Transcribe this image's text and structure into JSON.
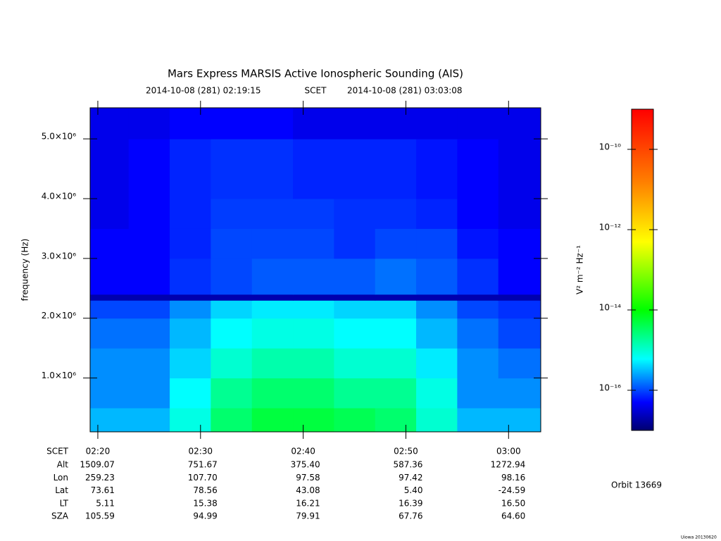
{
  "chart_data": {
    "type": "spectrogram",
    "title": "Mars Express MARSIS Active Ionospheric Sounding (AIS)",
    "subtitle_start": "2014-10-08 (281) 02:19:15",
    "subtitle_label": "SCET",
    "subtitle_end": "2014-10-08 (281) 03:03:08",
    "ylabel": "frequency (Hz)",
    "xlim": [
      "02:19:15",
      "03:03:08"
    ],
    "xticks": [
      "02:20",
      "02:30",
      "02:40",
      "02:50",
      "03:00"
    ],
    "ylim": [
      100000,
      5520000
    ],
    "yticks": [
      {
        "value": 1000000,
        "label": "1.0×10⁶"
      },
      {
        "value": 2000000,
        "label": "2.0×10⁶"
      },
      {
        "value": 3000000,
        "label": "3.0×10⁶"
      },
      {
        "value": 4000000,
        "label": "4.0×10⁶"
      },
      {
        "value": 5000000,
        "label": "5.0×10⁶"
      }
    ],
    "time_bins": [
      "02:19:15",
      "02:23",
      "02:27",
      "02:31",
      "02:35",
      "02:39",
      "02:43",
      "02:47",
      "02:51",
      "02:55",
      "02:59",
      "03:03:08"
    ],
    "freq_bins": [
      100000,
      500000,
      1000000,
      1500000,
      2000000,
      2300000,
      2400000,
      3000000,
      3500000,
      4000000,
      5000000,
      5520000
    ],
    "z": [
      [
        3e-16,
        3e-16,
        8e-16,
        3e-15,
        5e-15,
        5e-15,
        4e-15,
        3e-15,
        1e-15,
        3e-16,
        3e-16
      ],
      [
        2e-16,
        2e-16,
        6e-16,
        2e-15,
        3e-15,
        3e-15,
        2e-15,
        2e-15,
        8e-16,
        2e-16,
        2e-16
      ],
      [
        2e-16,
        2e-16,
        4e-16,
        1e-15,
        1.5e-15,
        1.5e-15,
        1e-15,
        1e-15,
        5e-16,
        2e-16,
        1.5e-16
      ],
      [
        1.5e-16,
        1.5e-16,
        3e-16,
        6e-16,
        8e-16,
        8e-16,
        6e-16,
        6e-16,
        3e-16,
        1.5e-16,
        1e-16
      ],
      [
        1e-16,
        1e-16,
        2e-16,
        4e-16,
        5e-16,
        5e-16,
        4e-16,
        4e-16,
        2e-16,
        1e-16,
        8e-17
      ],
      [
        2e-17,
        2e-17,
        2e-17,
        2e-17,
        2e-17,
        2e-17,
        2e-17,
        2e-17,
        2e-17,
        2e-17,
        2e-17
      ],
      [
        5e-17,
        5e-17,
        8e-17,
        1e-16,
        1.2e-16,
        1.2e-16,
        1.2e-16,
        1.5e-16,
        1.2e-16,
        8e-17,
        5e-17
      ],
      [
        5e-17,
        5e-17,
        7e-17,
        1e-16,
        1e-16,
        1e-16,
        8e-17,
        1e-16,
        1e-16,
        6e-17,
        5e-17
      ],
      [
        4e-17,
        5e-17,
        7e-17,
        9e-17,
        9e-17,
        9e-17,
        8e-17,
        8e-17,
        7e-17,
        5e-17,
        4e-17
      ],
      [
        4e-17,
        5e-17,
        7e-17,
        8e-17,
        8e-17,
        7e-17,
        7e-17,
        7e-17,
        6e-17,
        5e-17,
        4e-17
      ],
      [
        4e-17,
        4e-17,
        5e-17,
        5e-17,
        5e-17,
        4e-17,
        4e-17,
        4e-17,
        4e-17,
        4e-17,
        4e-17
      ]
    ],
    "colorbar": {
      "label": "V² m⁻² Hz⁻¹",
      "scale": "log",
      "lim": [
        1e-17,
        1e-09
      ],
      "ticks": [
        {
          "value": 1e-16,
          "label": "10⁻¹⁶"
        },
        {
          "value": 1e-14,
          "label": "10⁻¹⁴"
        },
        {
          "value": 1e-12,
          "label": "10⁻¹²"
        },
        {
          "value": 1e-10,
          "label": "10⁻¹⁰"
        }
      ],
      "colormap": [
        {
          "value": 1e-17,
          "color": "#000070"
        },
        {
          "value": 5e-17,
          "color": "#0000ff"
        },
        {
          "value": 6e-16,
          "color": "#00ffff"
        },
        {
          "value": 1e-14,
          "color": "#00ff00"
        },
        {
          "value": 5e-13,
          "color": "#ffff00"
        },
        {
          "value": 1.5e-11,
          "color": "#ff8000"
        },
        {
          "value": 1e-09,
          "color": "#ff0000"
        }
      ]
    }
  },
  "ephemeris": {
    "time_label": "SCET",
    "labels": [
      "Alt",
      "Lon",
      "Lat",
      "LT",
      "SZA"
    ],
    "rows": [
      [
        "1509.07",
        "751.67",
        "375.40",
        "587.36",
        "1272.94"
      ],
      [
        "259.23",
        "107.70",
        "97.58",
        "97.42",
        "98.16"
      ],
      [
        "73.61",
        "78.56",
        "43.08",
        "5.40",
        "-24.59"
      ],
      [
        "5.11",
        "15.38",
        "16.21",
        "16.39",
        "16.50"
      ],
      [
        "105.59",
        "94.99",
        "79.91",
        "67.76",
        "64.60"
      ]
    ]
  },
  "orbit": "Orbit 13669",
  "credit": "Uiowa 20130620"
}
